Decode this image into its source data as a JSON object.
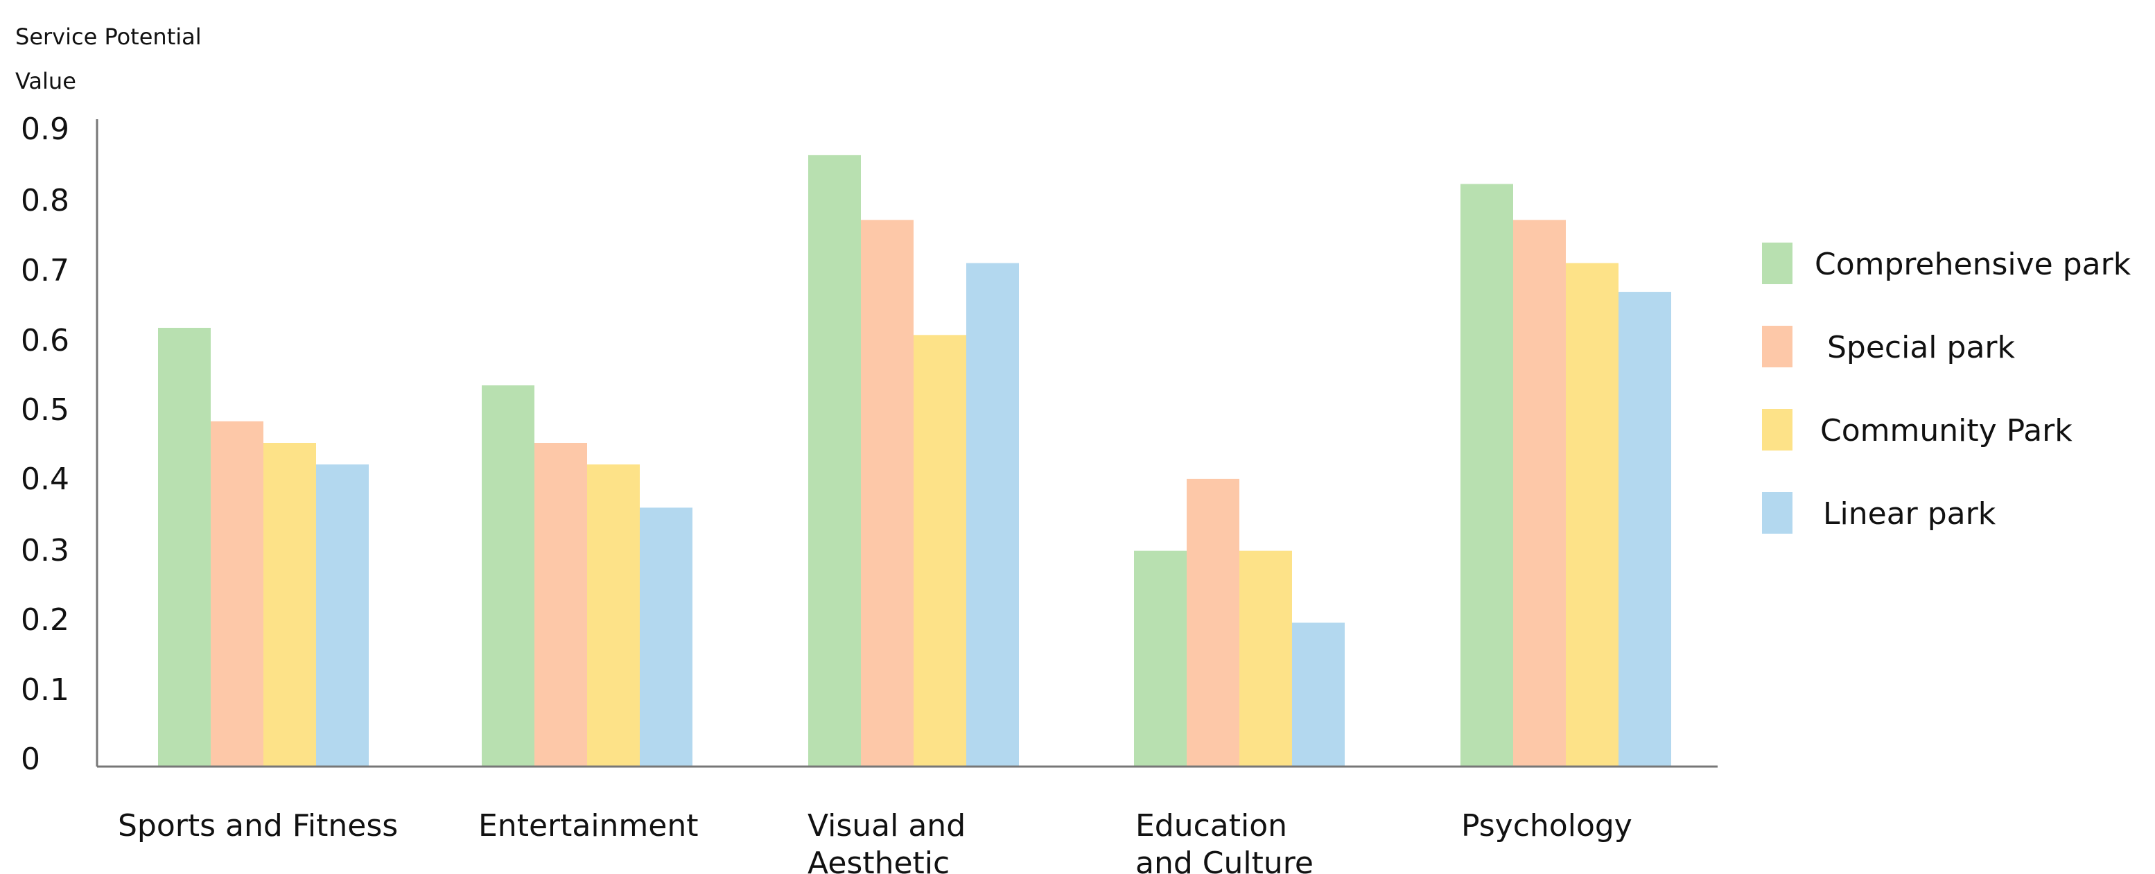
{
  "chart_data": {
    "type": "bar",
    "title": "",
    "ylabel_lines": [
      "Service Potential",
      "Value"
    ],
    "xlabel": "",
    "ylim": [
      0,
      0.9
    ],
    "yticks": [
      "0",
      "0.1",
      "0.2",
      "0.3",
      "0.4",
      "0.5",
      "0.6",
      "0.7",
      "0.8",
      "0.9"
    ],
    "ytick_values": [
      0,
      0.1,
      0.2,
      0.3,
      0.4,
      0.5,
      0.6,
      0.7,
      0.8,
      0.9
    ],
    "grid": false,
    "legend_position": "right",
    "categories": [
      [
        "Sports and Fitness"
      ],
      [
        "Entertainment"
      ],
      [
        "Visual and",
        "Aesthetic"
      ],
      [
        "Education",
        "and Culture"
      ],
      [
        "Psychology"
      ]
    ],
    "series": [
      {
        "name": "Comprehensive park",
        "color": "#b8e0b0",
        "values": [
          0.61,
          0.53,
          0.85,
          0.3,
          0.81
        ]
      },
      {
        "name": "Special park",
        "color": "#fdc8a8",
        "values": [
          0.48,
          0.45,
          0.76,
          0.4,
          0.76
        ]
      },
      {
        "name": "Community Park",
        "color": "#fde288",
        "values": [
          0.45,
          0.42,
          0.6,
          0.3,
          0.7
        ]
      },
      {
        "name": "Linear park",
        "color": "#b3d8ef",
        "values": [
          0.42,
          0.36,
          0.7,
          0.2,
          0.66
        ]
      }
    ]
  }
}
